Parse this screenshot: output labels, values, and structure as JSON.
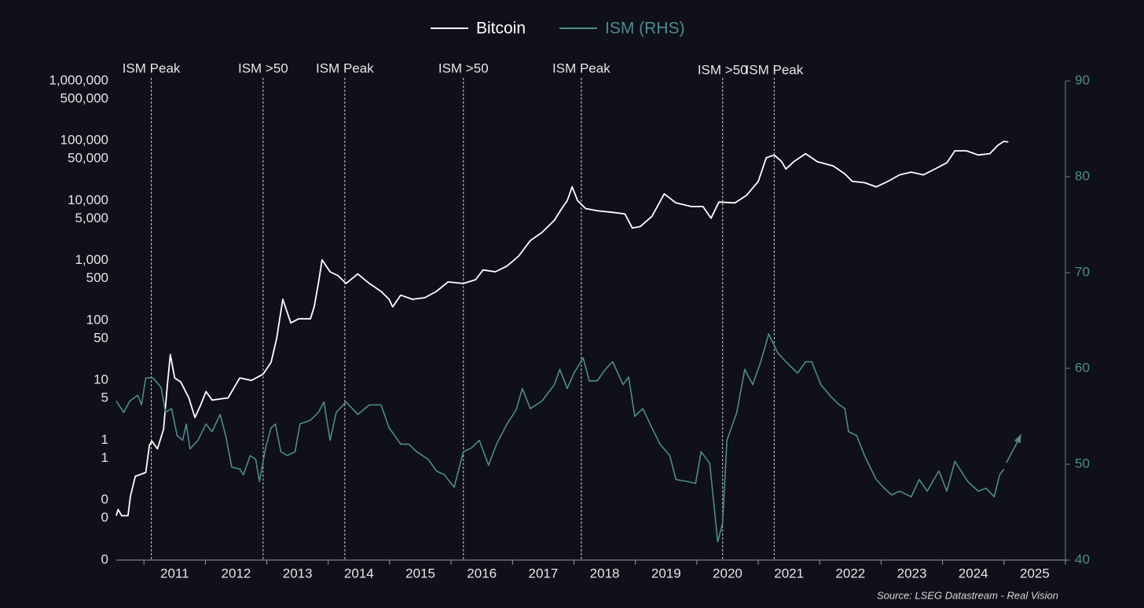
{
  "chart_data": {
    "type": "line",
    "legend": [
      "Bitcoin",
      "ISM (RHS)"
    ],
    "source": "Source: LSEG Datastream - Real Vision",
    "log_y": true,
    "xlim": [
      2010.55,
      2026.0
    ],
    "xticks": [
      {
        "value": 2011.5,
        "label": "2011"
      },
      {
        "value": 2012.5,
        "label": "2012"
      },
      {
        "value": 2013.5,
        "label": "2013"
      },
      {
        "value": 2014.5,
        "label": "2014"
      },
      {
        "value": 2015.5,
        "label": "2015"
      },
      {
        "value": 2016.5,
        "label": "2016"
      },
      {
        "value": 2017.5,
        "label": "2017"
      },
      {
        "value": 2018.5,
        "label": "2018"
      },
      {
        "value": 2019.5,
        "label": "2019"
      },
      {
        "value": 2020.5,
        "label": "2020"
      },
      {
        "value": 2021.5,
        "label": "2021"
      },
      {
        "value": 2022.5,
        "label": "2022"
      },
      {
        "value": 2023.5,
        "label": "2023"
      },
      {
        "value": 2024.5,
        "label": "2024"
      },
      {
        "value": 2025.5,
        "label": "2025"
      }
    ],
    "ylim": [
      0.01,
      1000000
    ],
    "yticks": [
      {
        "value": 1000000,
        "label": "1,000,000"
      },
      {
        "value": 500000,
        "label": "500,000"
      },
      {
        "value": 100000,
        "label": "100,000"
      },
      {
        "value": 50000,
        "label": "50,000"
      },
      {
        "value": 10000,
        "label": "10,000"
      },
      {
        "value": 5000,
        "label": "5,000"
      },
      {
        "value": 1000,
        "label": "1,000"
      },
      500,
      100,
      50,
      10,
      5,
      1,
      {
        "value": 0.5,
        "label": "1"
      },
      {
        "value": 0.1,
        "label": "0"
      },
      {
        "value": 0.05,
        "label": "0"
      },
      {
        "value": 0.01,
        "label": "0"
      }
    ],
    "y2lim": [
      40,
      90
    ],
    "y2ticks": [
      40,
      50,
      60,
      70,
      80,
      90
    ],
    "annotations": [
      {
        "x": 2011.12,
        "label": "ISM Peak"
      },
      {
        "x": 2012.94,
        "label": "ISM >50"
      },
      {
        "x": 2014.27,
        "label": "ISM Peak"
      },
      {
        "x": 2016.2,
        "label": "ISM >50"
      },
      {
        "x": 2018.12,
        "label": "ISM Peak"
      },
      {
        "x": 2020.42,
        "label": "ISM >50"
      },
      {
        "x": 2021.26,
        "label": "ISM Peak"
      }
    ],
    "series": [
      {
        "name": "Bitcoin",
        "color": "#ffffff",
        "x": [
          2010.55,
          2010.58,
          2010.64,
          2010.74,
          2010.78,
          2010.86,
          2011.03,
          2011.09,
          2011.13,
          2011.22,
          2011.32,
          2011.38,
          2011.43,
          2011.5,
          2011.6,
          2011.73,
          2011.83,
          2011.92,
          2012.01,
          2012.11,
          2012.37,
          2012.56,
          2012.75,
          2012.94,
          2013.07,
          2013.16,
          2013.26,
          2013.39,
          2013.52,
          2013.71,
          2013.77,
          2013.84,
          2013.9,
          2014.03,
          2014.16,
          2014.29,
          2014.48,
          2014.67,
          2014.86,
          2014.99,
          2015.05,
          2015.18,
          2015.37,
          2015.57,
          2015.76,
          2015.95,
          2016.2,
          2016.4,
          2016.52,
          2016.72,
          2016.91,
          2017.1,
          2017.29,
          2017.48,
          2017.68,
          2017.8,
          2017.89,
          2017.97,
          2018.06,
          2018.19,
          2018.38,
          2018.63,
          2018.83,
          2018.95,
          2019.08,
          2019.27,
          2019.47,
          2019.66,
          2019.91,
          2020.1,
          2020.23,
          2020.36,
          2020.62,
          2020.81,
          2021.0,
          2021.13,
          2021.26,
          2021.38,
          2021.45,
          2021.58,
          2021.77,
          2021.96,
          2022.22,
          2022.41,
          2022.53,
          2022.73,
          2022.92,
          2023.11,
          2023.3,
          2023.49,
          2023.69,
          2023.88,
          2024.07,
          2024.2,
          2024.39,
          2024.58,
          2024.77,
          2024.9,
          2025.0,
          2025.07
        ],
        "values": [
          0.055,
          0.07,
          0.055,
          0.055,
          0.116,
          0.25,
          0.29,
          0.83,
          0.97,
          0.72,
          1.53,
          8.1,
          27,
          11,
          9.4,
          5.1,
          2.4,
          3.8,
          6.5,
          4.7,
          5.1,
          11,
          10,
          12.7,
          20,
          50,
          226,
          91,
          107,
          107,
          168,
          415,
          1030,
          650,
          560,
          415,
          600,
          415,
          306,
          226,
          168,
          265,
          226,
          240,
          306,
          440,
          415,
          481,
          697,
          650,
          810,
          1190,
          2160,
          2950,
          4700,
          7400,
          10000,
          17000,
          10000,
          7400,
          6800,
          6400,
          6000,
          3500,
          3700,
          5500,
          13000,
          9200,
          8000,
          8000,
          5100,
          9500,
          9200,
          12300,
          21000,
          52000,
          58000,
          45000,
          33800,
          45000,
          61000,
          45000,
          38000,
          28000,
          21000,
          20000,
          17000,
          21000,
          27000,
          30000,
          27000,
          34000,
          43000,
          68000,
          68000,
          58000,
          61000,
          84000,
          98000,
          95000
        ]
      },
      {
        "name": "ISM (RHS)",
        "color": "#4f8b8c",
        "axis": "y2",
        "x": [
          2010.55,
          2010.67,
          2010.77,
          2010.9,
          2010.96,
          2011.03,
          2011.15,
          2011.28,
          2011.35,
          2011.45,
          2011.54,
          2011.63,
          2011.69,
          2011.75,
          2011.88,
          2012.01,
          2012.11,
          2012.24,
          2012.33,
          2012.43,
          2012.56,
          2012.62,
          2012.73,
          2012.82,
          2012.88,
          2012.98,
          2013.07,
          2013.14,
          2013.23,
          2013.33,
          2013.46,
          2013.54,
          2013.71,
          2013.84,
          2013.93,
          2014.03,
          2014.13,
          2014.29,
          2014.48,
          2014.67,
          2014.86,
          2014.99,
          2015.18,
          2015.31,
          2015.44,
          2015.63,
          2015.76,
          2015.89,
          2016.05,
          2016.2,
          2016.33,
          2016.46,
          2016.61,
          2016.74,
          2016.91,
          2017.06,
          2017.16,
          2017.29,
          2017.48,
          2017.68,
          2017.77,
          2017.89,
          2018.0,
          2018.15,
          2018.25,
          2018.38,
          2018.51,
          2018.63,
          2018.8,
          2018.89,
          2018.99,
          2019.12,
          2019.27,
          2019.4,
          2019.56,
          2019.66,
          2019.85,
          2019.98,
          2020.07,
          2020.21,
          2020.34,
          2020.42,
          2020.49,
          2020.65,
          2020.78,
          2020.91,
          2021.04,
          2021.17,
          2021.32,
          2021.45,
          2021.64,
          2021.77,
          2021.87,
          2022.02,
          2022.19,
          2022.32,
          2022.41,
          2022.47,
          2022.6,
          2022.73,
          2022.92,
          2023.05,
          2023.17,
          2023.3,
          2023.49,
          2023.62,
          2023.75,
          2023.94,
          2024.07,
          2024.2,
          2024.41,
          2024.58,
          2024.71,
          2024.84,
          2024.93,
          2025.0
        ],
        "values": [
          56.6,
          55.4,
          56.6,
          57.2,
          56.2,
          59.0,
          59.0,
          58.0,
          55.4,
          55.8,
          53.0,
          52.5,
          54.2,
          51.6,
          52.5,
          54.2,
          53.4,
          55.2,
          53.0,
          49.7,
          49.5,
          48.9,
          50.9,
          50.5,
          48.2,
          51.7,
          53.8,
          54.2,
          51.3,
          50.9,
          51.3,
          54.2,
          54.6,
          55.4,
          56.5,
          52.5,
          55.4,
          56.5,
          55.2,
          56.2,
          56.2,
          53.8,
          52.1,
          52.1,
          51.3,
          50.5,
          49.3,
          48.9,
          47.6,
          51.3,
          51.7,
          52.5,
          49.9,
          52.1,
          54.2,
          55.7,
          57.9,
          55.8,
          56.6,
          58.3,
          59.9,
          57.9,
          59.5,
          61.1,
          58.7,
          58.7,
          59.9,
          60.7,
          58.3,
          59.1,
          55.0,
          55.8,
          53.8,
          52.1,
          50.9,
          48.4,
          48.2,
          48.0,
          51.3,
          50.1,
          41.9,
          43.9,
          52.5,
          55.4,
          59.9,
          58.3,
          60.7,
          63.6,
          61.6,
          60.7,
          59.5,
          60.7,
          60.7,
          58.3,
          57.0,
          56.2,
          55.8,
          53.4,
          53.0,
          50.9,
          48.4,
          47.5,
          46.8,
          47.2,
          46.6,
          48.4,
          47.2,
          49.3,
          47.2,
          50.3,
          48.2,
          47.2,
          47.5,
          46.6,
          48.9,
          49.5
        ]
      }
    ]
  }
}
